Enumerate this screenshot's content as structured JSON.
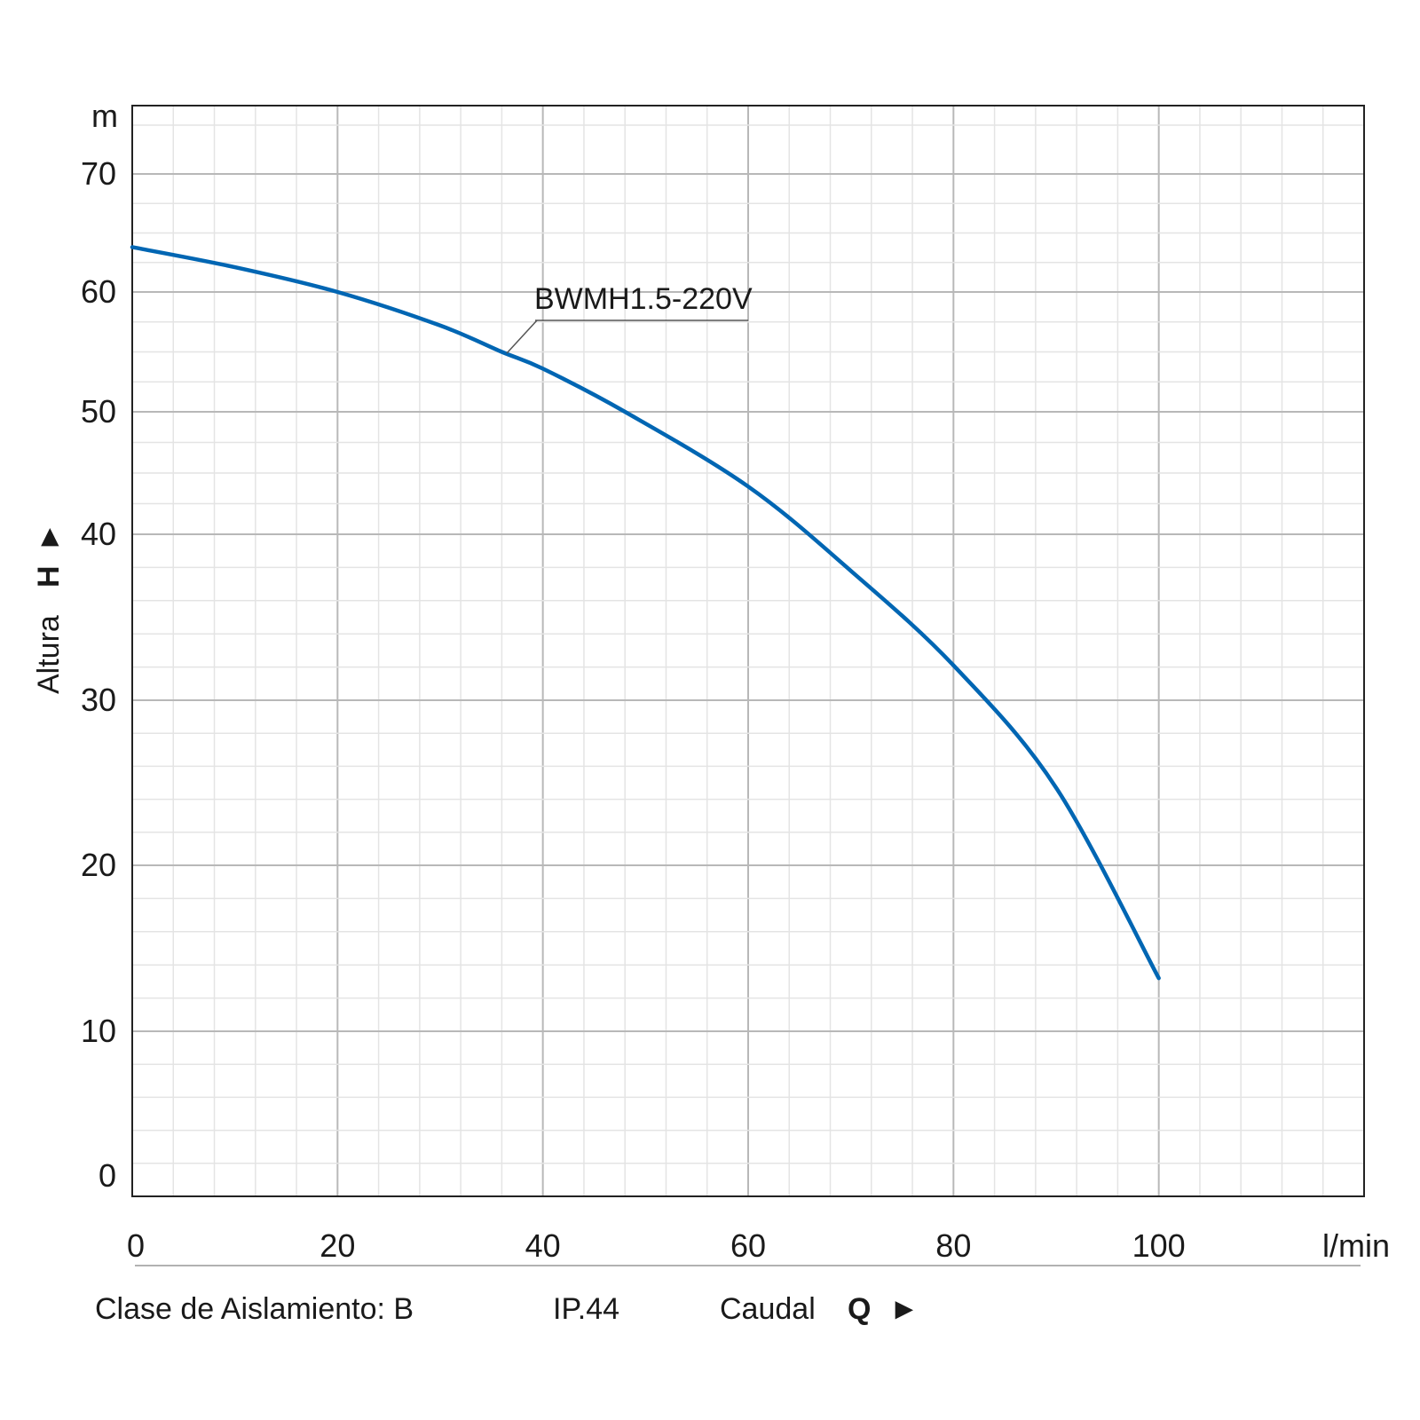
{
  "chart_data": {
    "type": "line",
    "title": "",
    "xlabel": "Caudal",
    "xsymbol": "Q",
    "xunit": "l/min",
    "ylabel": "Altura",
    "ysymbol": "H",
    "yunit": "m",
    "xlim": [
      0,
      120
    ],
    "ylim": [
      0,
      73.5
    ],
    "y_scale": "non-uniform (0–40 expanded, 40–70 compressed)",
    "grid": true,
    "x_ticks": [
      0,
      20,
      40,
      60,
      80,
      100
    ],
    "y_ticks": [
      0,
      10,
      20,
      30,
      40,
      50,
      60,
      70
    ],
    "series": [
      {
        "name": "BWMH1.5-220V",
        "color": "#0066b3",
        "x": [
          0,
          10,
          20,
          30,
          36,
          40,
          48,
          60,
          70,
          80,
          90,
          100
        ],
        "y": [
          63.8,
          62.1,
          60.0,
          57.2,
          55.0,
          53.6,
          50.0,
          43.9,
          37.8,
          32.1,
          24.7,
          13.2
        ]
      }
    ],
    "annotation": "BWMH1.5-220V"
  },
  "footer": {
    "insulation": "Clase de Aislamiento: B",
    "ip": "IP.44"
  },
  "arrows": {
    "x": "►",
    "y": "▲"
  }
}
